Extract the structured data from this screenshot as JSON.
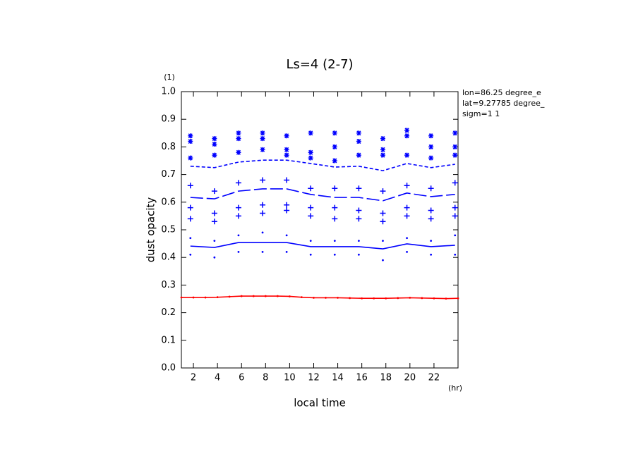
{
  "chart_data": {
    "type": "line",
    "title": "Ls=4 (2-7)",
    "y_unit": "(1)",
    "x_unit": "(hr)",
    "x_label": "local time",
    "y_label": "dust opacity",
    "annotations": [
      "lon=86.25 degree_e",
      "lat=9.27785 degree_",
      "sigm=1 1"
    ],
    "xlim": [
      1,
      24
    ],
    "xticks": [
      2,
      4,
      6,
      8,
      10,
      12,
      14,
      16,
      18,
      20,
      22
    ],
    "ylim": [
      0,
      1
    ],
    "yticks": [
      {
        "value": 0,
        "label": "0.0"
      },
      0.1,
      0.2,
      0.3,
      0.4,
      0.5,
      0.6,
      0.7,
      0.8,
      0.9,
      {
        "value": 1,
        "label": "1.0"
      }
    ],
    "series": [
      {
        "kind": "line",
        "dash": "dashed",
        "color": "#0000ff",
        "x": [
          1.75,
          3.75,
          5.75,
          7.75,
          9.75,
          11.75,
          13.75,
          15.75,
          17.75,
          19.75,
          21.75,
          23.75
        ],
        "values": [
          0.73,
          0.725,
          0.745,
          0.752,
          0.752,
          0.74,
          0.727,
          0.73,
          0.714,
          0.74,
          0.725,
          0.737
        ]
      },
      {
        "kind": "line",
        "dash": "long-dash",
        "color": "#0000ff",
        "x": [
          1.75,
          3.75,
          5.75,
          7.75,
          9.75,
          11.75,
          13.75,
          15.75,
          17.75,
          19.75,
          21.75,
          23.75
        ],
        "values": [
          0.617,
          0.612,
          0.64,
          0.648,
          0.648,
          0.628,
          0.617,
          0.617,
          0.605,
          0.633,
          0.62,
          0.628
        ]
      },
      {
        "kind": "line",
        "dash": "solid",
        "color": "#0000ff",
        "x": [
          1.75,
          3.75,
          5.75,
          7.75,
          9.75,
          11.75,
          13.75,
          15.75,
          17.75,
          19.75,
          21.75,
          23.75
        ],
        "values": [
          0.441,
          0.436,
          0.454,
          0.454,
          0.454,
          0.439,
          0.439,
          0.439,
          0.431,
          0.449,
          0.439,
          0.444
        ]
      },
      {
        "kind": "line",
        "dash": "solid",
        "color": "#ff0000",
        "marker": "dot",
        "x": [
          1,
          2,
          3,
          4,
          5,
          6,
          7,
          8,
          9,
          10,
          11,
          12,
          13,
          14,
          15,
          16,
          17,
          18,
          19,
          20,
          21,
          22,
          23,
          24
        ],
        "values": [
          0.255,
          0.255,
          0.255,
          0.256,
          0.258,
          0.26,
          0.26,
          0.26,
          0.26,
          0.259,
          0.256,
          0.254,
          0.254,
          0.254,
          0.253,
          0.252,
          0.252,
          0.252,
          0.253,
          0.254,
          0.253,
          0.252,
          0.251,
          0.252
        ]
      },
      {
        "kind": "scatter",
        "marker": "star",
        "color": "#0000ff",
        "x": [
          1.75,
          1.75,
          1.75,
          3.75,
          3.75,
          3.75,
          5.75,
          5.75,
          5.75,
          7.75,
          7.75,
          7.75,
          9.75,
          9.75,
          9.75,
          11.75,
          11.75,
          11.75,
          13.75,
          13.75,
          13.75,
          15.75,
          15.75,
          15.75,
          17.75,
          17.75,
          17.75,
          19.75,
          19.75,
          19.75,
          21.75,
          21.75,
          21.75,
          23.75,
          23.75,
          23.75
        ],
        "values": [
          0.84,
          0.82,
          0.76,
          0.83,
          0.81,
          0.77,
          0.85,
          0.83,
          0.78,
          0.85,
          0.83,
          0.79,
          0.84,
          0.79,
          0.77,
          0.85,
          0.78,
          0.76,
          0.85,
          0.8,
          0.75,
          0.85,
          0.82,
          0.77,
          0.83,
          0.79,
          0.77,
          0.86,
          0.84,
          0.77,
          0.84,
          0.8,
          0.76,
          0.85,
          0.8,
          0.77
        ]
      },
      {
        "kind": "scatter",
        "marker": "plus",
        "color": "#0000ff",
        "x": [
          1.75,
          1.75,
          1.75,
          3.75,
          3.75,
          3.75,
          5.75,
          5.75,
          5.75,
          7.75,
          7.75,
          7.75,
          9.75,
          9.75,
          9.75,
          11.75,
          11.75,
          11.75,
          13.75,
          13.75,
          13.75,
          15.75,
          15.75,
          15.75,
          17.75,
          17.75,
          17.75,
          19.75,
          19.75,
          19.75,
          21.75,
          21.75,
          21.75,
          23.75,
          23.75,
          23.75
        ],
        "values": [
          0.54,
          0.58,
          0.66,
          0.53,
          0.56,
          0.64,
          0.55,
          0.58,
          0.67,
          0.56,
          0.59,
          0.68,
          0.57,
          0.59,
          0.68,
          0.55,
          0.58,
          0.65,
          0.54,
          0.58,
          0.65,
          0.54,
          0.57,
          0.65,
          0.53,
          0.56,
          0.64,
          0.55,
          0.58,
          0.66,
          0.54,
          0.57,
          0.65,
          0.55,
          0.58,
          0.67
        ]
      },
      {
        "kind": "scatter",
        "marker": "dot",
        "color": "#0000ff",
        "x": [
          1.75,
          1.75,
          3.75,
          3.75,
          5.75,
          5.75,
          7.75,
          7.75,
          9.75,
          9.75,
          11.75,
          11.75,
          13.75,
          13.75,
          15.75,
          15.75,
          17.75,
          17.75,
          19.75,
          19.75,
          21.75,
          21.75,
          23.75,
          23.75
        ],
        "values": [
          0.41,
          0.47,
          0.4,
          0.46,
          0.42,
          0.48,
          0.42,
          0.49,
          0.42,
          0.48,
          0.41,
          0.46,
          0.41,
          0.46,
          0.41,
          0.46,
          0.39,
          0.46,
          0.42,
          0.47,
          0.41,
          0.46,
          0.41,
          0.48
        ]
      }
    ]
  }
}
